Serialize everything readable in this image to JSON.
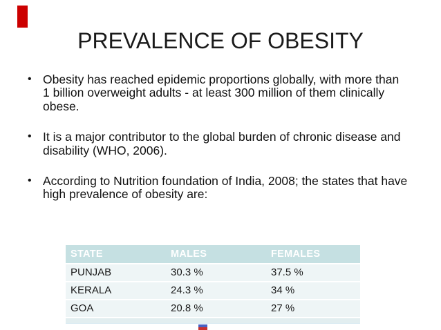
{
  "slide": {
    "title": "PREVALENCE OF OBESITY",
    "bullet_glyph": "•",
    "bullets": [
      {
        "lines": [
          "Obesity has reached epidemic proportions globally, with more than",
          "1 billion overweight adults - at least 300 million of them clinically",
          "obese."
        ]
      },
      {
        "lines": [
          "It is a major contributor to the global burden of chronic disease and",
          "disability (WHO, 2006)."
        ]
      },
      {
        "lines": [
          "According to Nutrition foundation of India, 2008; the states that have",
          "high prevalence of obesity are:"
        ]
      }
    ],
    "table": {
      "headers": [
        "STATE",
        "MALES",
        "FEMALES"
      ],
      "rows": [
        [
          "PUNJAB",
          "30.3 %",
          "37.5 %"
        ],
        [
          "KERALA",
          "24.3 %",
          "34 %"
        ],
        [
          "GOA",
          "20.8 %",
          "27 %"
        ]
      ]
    },
    "colors": {
      "accent_bar": "#cc0000",
      "table_header_bg": "#c5e0e2",
      "table_header_text": "#ffffff",
      "table_row_bg": "#eef5f6",
      "table_bottom_band": "#e2eef0",
      "footer_mark_blue": "#4862c4",
      "footer_mark_red": "#c9302f"
    }
  }
}
